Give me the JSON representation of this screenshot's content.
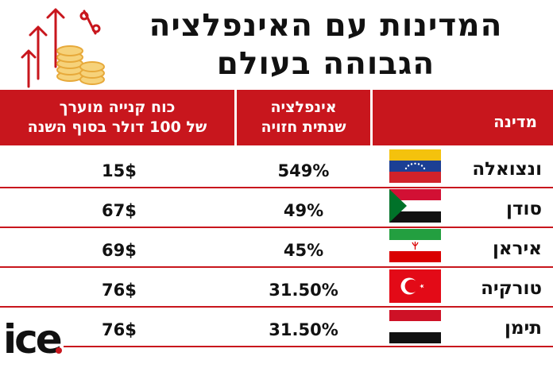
{
  "title": {
    "line1": "המדינות עם האינפלציה",
    "line2": "הגבוהה בעולם"
  },
  "headers": {
    "country": "מדינה",
    "inflation_line1": "אינפלציה",
    "inflation_line2": "שנתית חזויה",
    "buying_power_line1": "כוח קנייה מוערך",
    "buying_power_line2": "של 100 דולר בסוף השנה"
  },
  "rows": [
    {
      "country": "ונצואלה",
      "inflation": "549%",
      "buying_power": "15$"
    },
    {
      "country": "סודן",
      "inflation": "49%",
      "buying_power": "67$"
    },
    {
      "country": "איראן",
      "inflation": "45%",
      "buying_power": "69$"
    },
    {
      "country": "טורקיה",
      "inflation": "31.50%",
      "buying_power": "76$"
    },
    {
      "country": "תימן",
      "inflation": "31.50%",
      "buying_power": "76$"
    }
  ],
  "brand": {
    "logo_text": "ice",
    "accent_color": "#c8161d"
  },
  "icons": [
    "inflation-coins-icon",
    "venezuela-flag-icon",
    "sudan-flag-icon",
    "iran-flag-icon",
    "turkey-flag-icon",
    "yemen-flag-icon"
  ]
}
